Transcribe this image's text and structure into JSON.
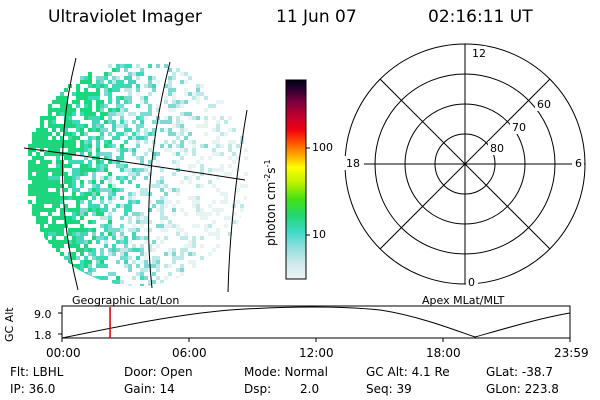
{
  "header": {
    "instrument": "Ultraviolet Imager",
    "date": "11 Jun 07",
    "time": "02:16:11 UT"
  },
  "image_panel": {
    "caption": "Geographic Lat/Lon",
    "palette": [
      "#e8f4f4",
      "#bfe8e8",
      "#7fd9d2",
      "#3fd8b8",
      "#1cd67e"
    ]
  },
  "colorbar": {
    "unit_main": "photon cm",
    "unit_exp1": "-2",
    "unit_mid": "s",
    "unit_exp2": "-1",
    "ticks": [
      "100",
      "10"
    ]
  },
  "polar": {
    "caption": "Apex MLat/MLT",
    "mlt_labels": {
      "top": "12",
      "left": "18",
      "right": "6",
      "bottom": "0"
    },
    "lat_labels": [
      "60",
      "70",
      "80"
    ]
  },
  "timeline": {
    "ylabel": "GC Alt",
    "yticks": [
      "9.0",
      "1.8"
    ],
    "xticks": [
      "00:00",
      "06:00",
      "12:00",
      "18:00",
      "23:59"
    ],
    "current_time_hours": 2.27,
    "marker_color": "#cc0000"
  },
  "footer": {
    "flt": "Flt: LBHL",
    "door": "Door: Open",
    "mode": "Mode: Normal",
    "gc_alt": "GC Alt: 4.1 Re",
    "glat": "GLat: -38.7",
    "ip": "IP: 36.0",
    "gain": "Gain: 14",
    "dsp_label": "Dsp:",
    "dsp_value": "2.0",
    "seq": "Seq: 39",
    "glon": "GLon: 223.8"
  }
}
